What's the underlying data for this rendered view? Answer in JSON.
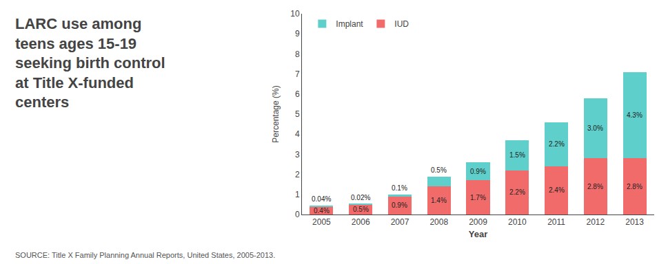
{
  "chart_data": {
    "type": "bar",
    "title": "LARC use among\nteens ages 15-19\nseeking birth control\nat Title X-funded\ncenters",
    "annotations": [
      "SOURCE: Title X Family Planning Annual Reports, United States, 2005-2013."
    ],
    "xlabel": "Year",
    "ylabel": "Percentage (%)",
    "categories": [
      "2005",
      "2006",
      "2007",
      "2008",
      "2009",
      "2010",
      "2011",
      "2012",
      "2013"
    ],
    "series": [
      {
        "name": "IUD",
        "color": "#F26B6B",
        "values": [
          0.4,
          0.5,
          0.9,
          1.4,
          1.7,
          2.2,
          2.4,
          2.8,
          2.8
        ],
        "value_labels": [
          "0.4%",
          "0.5%",
          "0.9%",
          "1.4%",
          "1.7%",
          "2.2%",
          "2.4%",
          "2.8%",
          "2.8%"
        ]
      },
      {
        "name": "Implant",
        "color": "#5ECFCA",
        "values": [
          0.04,
          0.02,
          0.1,
          0.5,
          0.9,
          1.5,
          2.2,
          3.0,
          4.3
        ],
        "value_labels": [
          "0.04%",
          "0.02%",
          "0.1%",
          "0.5%",
          "0.9%",
          "1.5%",
          "2.2%",
          "3.0%",
          "4.3%"
        ]
      }
    ],
    "stacked": true,
    "data_labels": true,
    "legend": "upper left",
    "grid": false,
    "ylim": [
      0,
      10
    ],
    "yticks": [
      0,
      1,
      2,
      3,
      4,
      5,
      6,
      7,
      8,
      9,
      10
    ]
  }
}
